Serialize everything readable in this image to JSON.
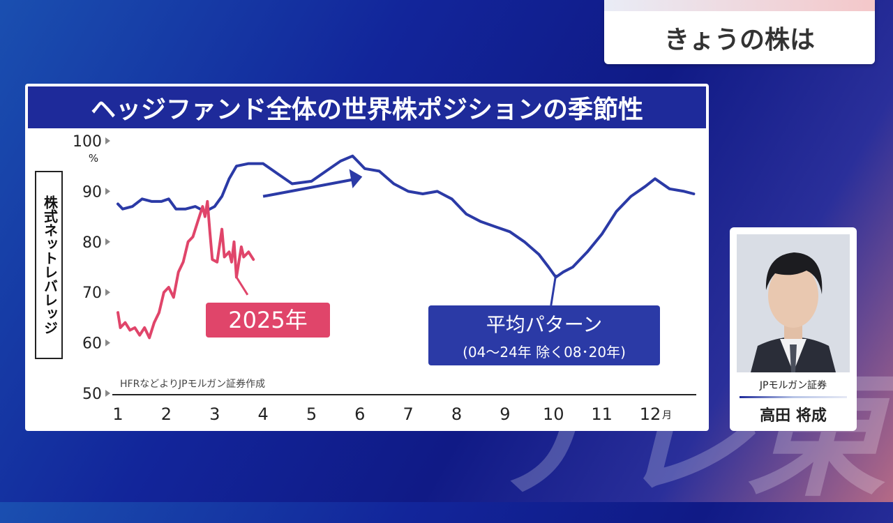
{
  "segment_title": "きょうの株は",
  "watermark": "テレ東",
  "chart_data": {
    "type": "line",
    "title": "ヘッジファンド全体の世界株ポジションの季節性",
    "ylabel": "株式ネットレバレッジ",
    "y_unit": "%",
    "ylim": [
      50,
      100
    ],
    "y_ticks": [
      "100",
      "90",
      "80",
      "70",
      "60",
      "50"
    ],
    "x_ticks": [
      "1",
      "2",
      "3",
      "4",
      "5",
      "6",
      "7",
      "8",
      "9",
      "10",
      "11",
      "12"
    ],
    "x_unit": "月",
    "source_note": "HFRなどよりJPモルガン証券作成",
    "series": [
      {
        "name": "平均パターン",
        "subtitle": "(04〜24年 除く08･20年)",
        "color": "#2b3aa6",
        "x": [
          1.0,
          1.1,
          1.3,
          1.5,
          1.7,
          1.9,
          2.05,
          2.2,
          2.4,
          2.6,
          2.8,
          3.0,
          3.15,
          3.3,
          3.45,
          3.7,
          4.0,
          4.3,
          4.6,
          5.0,
          5.3,
          5.6,
          5.85,
          6.1,
          6.4,
          6.7,
          7.0,
          7.3,
          7.6,
          7.9,
          8.2,
          8.5,
          8.8,
          9.1,
          9.4,
          9.7,
          9.9,
          10.05,
          10.2,
          10.4,
          10.7,
          11.0,
          11.3,
          11.6,
          11.9,
          12.1,
          12.4,
          12.7,
          12.9
        ],
        "values": [
          87.5,
          86.5,
          87,
          88.5,
          88,
          88,
          88.5,
          86.5,
          86.5,
          87,
          86,
          87,
          89,
          92.5,
          95,
          95.5,
          95.5,
          93.5,
          91.5,
          92,
          94,
          96,
          97,
          94.5,
          94,
          91.5,
          90,
          89.5,
          90,
          88.5,
          85.5,
          84,
          83,
          82,
          80,
          77.5,
          75,
          73,
          74,
          75,
          78,
          81.5,
          86,
          89,
          91,
          92.5,
          90.5,
          90,
          89.5
        ]
      },
      {
        "name": "2025年",
        "color": "#e0456a",
        "x": [
          1.0,
          1.05,
          1.15,
          1.25,
          1.35,
          1.45,
          1.55,
          1.65,
          1.75,
          1.85,
          1.95,
          2.05,
          2.15,
          2.25,
          2.35,
          2.45,
          2.55,
          2.65,
          2.75,
          2.8,
          2.85,
          2.9,
          2.95,
          3.05,
          3.15,
          3.2,
          3.3,
          3.35,
          3.4,
          3.45,
          3.55,
          3.6,
          3.7,
          3.8
        ],
        "values": [
          66,
          63,
          64,
          62.5,
          63,
          61.5,
          63,
          61,
          64,
          66,
          70,
          71,
          69,
          74,
          76,
          80,
          81,
          84,
          87,
          85,
          88,
          82,
          76.5,
          76,
          82.5,
          77,
          78,
          76,
          80,
          73,
          79,
          77,
          78,
          76.5
        ]
      }
    ]
  },
  "presenter": {
    "org": "JPモルガン証券",
    "name": "高田 将成"
  }
}
